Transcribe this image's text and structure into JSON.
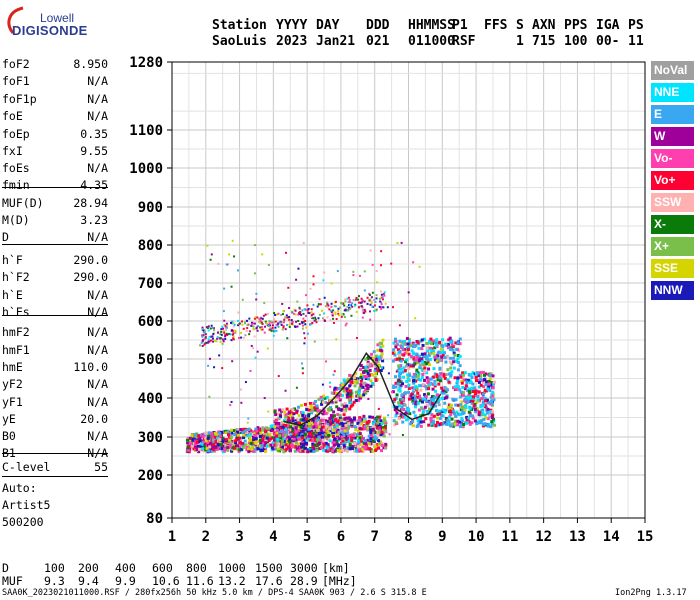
{
  "logo": {
    "top": "Lowell",
    "bottom": "DIGISONDE"
  },
  "header": {
    "labels": [
      "Station",
      "YYYY",
      "DAY",
      "DDD",
      "HHMMSS",
      "P1",
      "FFS",
      "S",
      "AXN",
      "PPS",
      "IGA",
      "PS"
    ],
    "values": [
      "SaoLuis",
      "2023",
      "Jan21",
      "021",
      "011000",
      "RSF",
      "1",
      "715",
      "100",
      "00-",
      "11"
    ]
  },
  "params": [
    {
      "name": "foF2",
      "value": "8.950"
    },
    {
      "name": "foF1",
      "value": "N/A"
    },
    {
      "name": "foF1p",
      "value": "N/A"
    },
    {
      "name": "foE",
      "value": "N/A"
    },
    {
      "name": "foEp",
      "value": "0.35"
    },
    {
      "name": "fxI",
      "value": "9.55"
    },
    {
      "name": "foEs",
      "value": "N/A"
    },
    {
      "name": "fmin",
      "value": "4.35"
    },
    {
      "name": "MUF(D)",
      "value": "28.94"
    },
    {
      "name": "M(D)",
      "value": "3.23"
    },
    {
      "name": "D",
      "value": "N/A"
    },
    {
      "name": "h`F",
      "value": "290.0"
    },
    {
      "name": "h`F2",
      "value": "290.0"
    },
    {
      "name": "h`E",
      "value": "N/A"
    },
    {
      "name": "h`Es",
      "value": "N/A"
    },
    {
      "name": "hmF2",
      "value": "N/A"
    },
    {
      "name": "hmF1",
      "value": "N/A"
    },
    {
      "name": "hmE",
      "value": "110.0"
    },
    {
      "name": "yF2",
      "value": "N/A"
    },
    {
      "name": "yF1",
      "value": "N/A"
    },
    {
      "name": "yE",
      "value": "20.0"
    },
    {
      "name": "B0",
      "value": "N/A"
    },
    {
      "name": "B1",
      "value": "N/A"
    },
    {
      "name": "C-level",
      "value": "55"
    }
  ],
  "left_notes": [
    "Auto:",
    "Artist5",
    "500200"
  ],
  "legend": [
    {
      "label": "NoVal",
      "color": "#a0a0a0",
      "text_color": "#ffffff"
    },
    {
      "label": "NNE",
      "color": "#00e5ff",
      "text_color": "#ffffff"
    },
    {
      "label": "E",
      "color": "#3aa8f0",
      "text_color": "#ffffff"
    },
    {
      "label": "W",
      "color": "#a0009a",
      "text_color": "#ffffff"
    },
    {
      "label": "Vo-",
      "color": "#ff3fb0",
      "text_color": "#ffffff"
    },
    {
      "label": "Vo+",
      "color": "#ff0033",
      "text_color": "#ffffff"
    },
    {
      "label": "SSW",
      "color": "#ffb0b0",
      "text_color": "#ffffff"
    },
    {
      "label": "X-",
      "color": "#0a7a0a",
      "text_color": "#ffffff"
    },
    {
      "label": "X+",
      "color": "#7abf4a",
      "text_color": "#ffffff"
    },
    {
      "label": "SSE",
      "color": "#d4d400",
      "text_color": "#ffffff"
    },
    {
      "label": "NNW",
      "color": "#1a1ab8",
      "text_color": "#ffffff"
    }
  ],
  "bottom": {
    "d_label": "D",
    "d_values": [
      "100",
      "200",
      "400",
      "600",
      "800",
      "1000",
      "1500",
      "3000",
      "[km]"
    ],
    "muf_label": "MUF",
    "muf_values": [
      "9.3",
      "9.4",
      "9.9",
      "10.6",
      "11.6",
      "13.2",
      "17.6",
      "28.9",
      "[MHz]"
    ]
  },
  "footer": {
    "left": "SAA0K_2023021011000.RSF / 280fx256h 50 kHz 5.0 km / DPS-4 SAA0K 903 / 2.6 S 315.8 E",
    "right": "Ion2Png 1.3.17"
  },
  "chart_data": {
    "type": "scatter",
    "xlabel": "",
    "ylabel": "",
    "xlim": [
      1,
      15
    ],
    "ylim": [
      80,
      1280
    ],
    "x_ticks": [
      1,
      2,
      3,
      4,
      5,
      6,
      7,
      8,
      9,
      10,
      11,
      12,
      13,
      14,
      15
    ],
    "y_ticks": [
      80,
      200,
      300,
      400,
      500,
      600,
      700,
      800,
      900,
      1000,
      1100,
      1280
    ],
    "y_scale": "nonlinear (ionogram virtual height)",
    "grid": true,
    "profile_curve": {
      "x": [
        4.3,
        4.8,
        5.3,
        5.8,
        6.3,
        6.75,
        7.1,
        7.6,
        8.1,
        8.6,
        8.95
      ],
      "y": [
        340,
        330,
        355,
        400,
        450,
        515,
        480,
        375,
        345,
        360,
        410
      ]
    },
    "echo_regions": [
      {
        "name": "F-layer O/X traces",
        "x_range": [
          1.4,
          7.3
        ],
        "y_range": [
          270,
          380
        ]
      },
      {
        "name": "Spread F",
        "x_range": [
          7.5,
          10.5
        ],
        "y_range": [
          330,
          560
        ]
      },
      {
        "name": "Multi-hop trace",
        "x_range": [
          1.8,
          7.3
        ],
        "y_range": [
          560,
          720
        ]
      }
    ]
  }
}
